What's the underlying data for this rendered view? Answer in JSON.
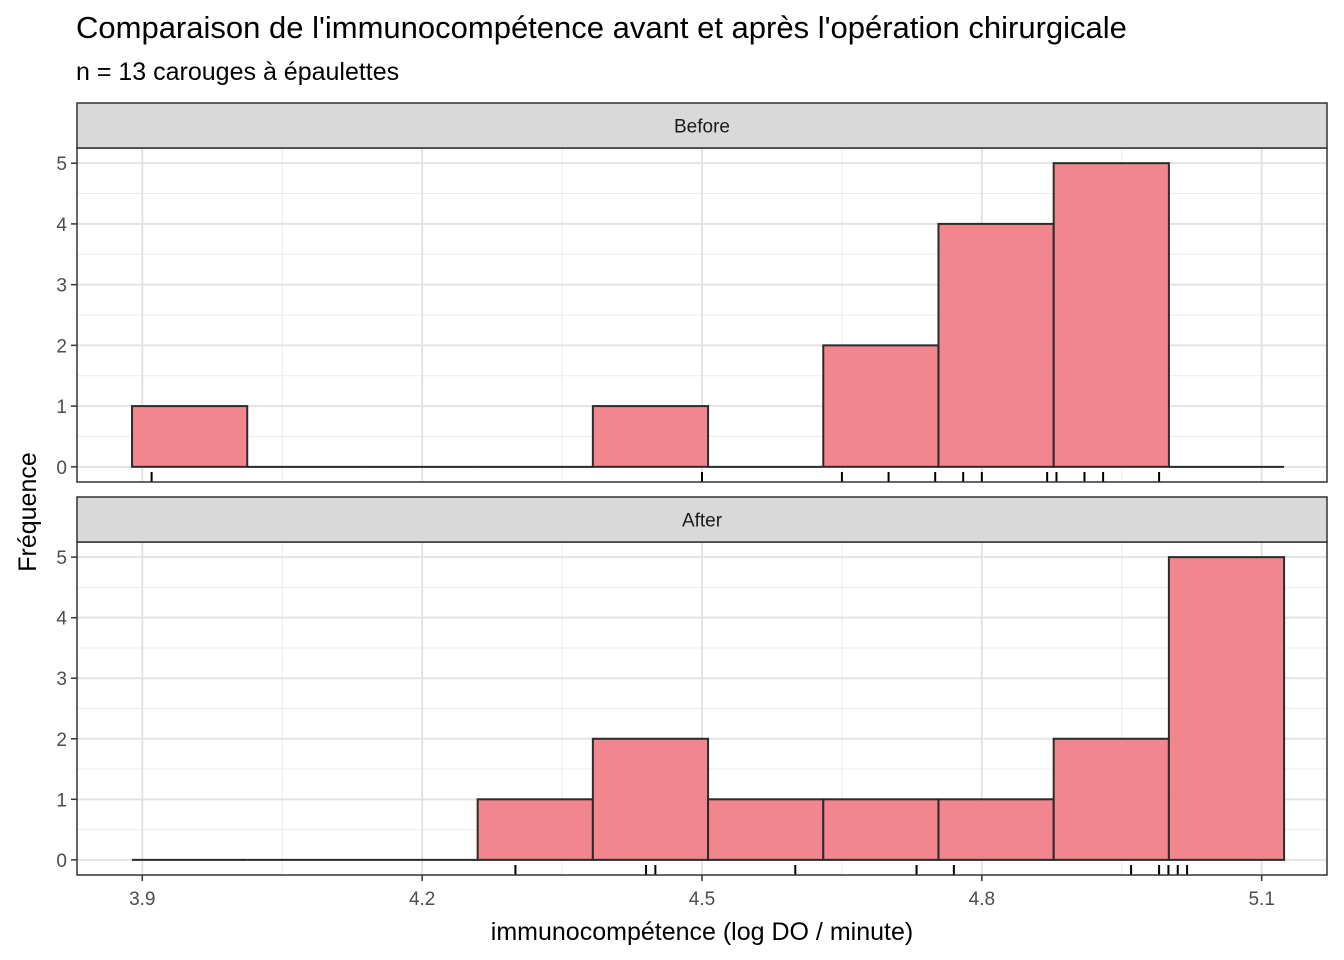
{
  "chart_data": {
    "type": "histogram",
    "title": "Comparaison de l'immunocompétence avant et après l'opération chirurgicale",
    "subtitle": "n = 13 carouges à épaulettes",
    "xlabel": "immunocompétence (log DO / minute)",
    "ylabel": "Fréquence",
    "xlim": [
      3.83,
      5.17
    ],
    "ylim": [
      -0.25,
      5.25
    ],
    "x_ticks": [
      3.9,
      4.2,
      4.5,
      4.8,
      5.1
    ],
    "x_tick_labels": [
      "3.9",
      "4.2",
      "4.5",
      "4.8",
      "5.1"
    ],
    "y_ticks": [
      0,
      1,
      2,
      3,
      4,
      5
    ],
    "y_tick_labels": [
      "0",
      "1",
      "2",
      "3",
      "4",
      "5"
    ],
    "bin_edges": [
      3.889,
      4.0125,
      4.136,
      4.2595,
      4.383,
      4.5065,
      4.63,
      4.7535,
      4.877,
      5.0005,
      5.124
    ],
    "bar_color": "#f08088",
    "facets": [
      {
        "label": "Before",
        "counts": [
          1,
          0,
          0,
          0,
          1,
          0,
          2,
          4,
          5,
          0
        ],
        "rug": [
          3.91,
          4.5,
          4.65,
          4.7,
          4.75,
          4.78,
          4.8,
          4.87,
          4.88,
          4.91,
          4.93,
          4.99
        ]
      },
      {
        "label": "After",
        "counts": [
          0,
          0,
          0,
          1,
          2,
          1,
          1,
          1,
          2,
          5
        ],
        "rug": [
          4.3,
          4.44,
          4.45,
          4.6,
          4.73,
          4.77,
          4.96,
          4.99,
          5.0,
          5.01,
          5.02
        ]
      }
    ]
  }
}
